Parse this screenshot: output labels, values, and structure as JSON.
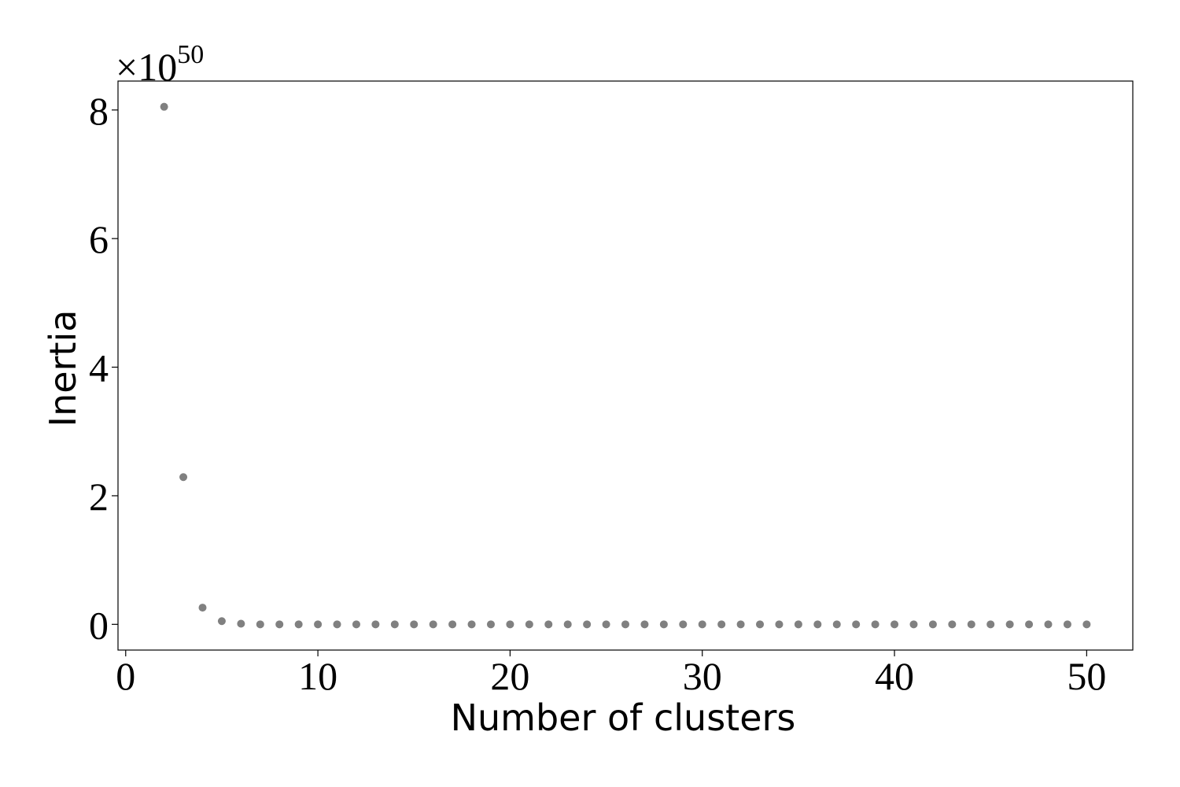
{
  "chart_data": {
    "type": "scatter",
    "xlabel": "Number of clusters",
    "ylabel": "Inertia",
    "y_offset_base": "×10",
    "y_offset_exponent": "50",
    "color": "#808080",
    "x": [
      2,
      3,
      4,
      5,
      6,
      7,
      8,
      9,
      10,
      11,
      12,
      13,
      14,
      15,
      16,
      17,
      18,
      19,
      20,
      21,
      22,
      23,
      24,
      25,
      26,
      27,
      28,
      29,
      30,
      31,
      32,
      33,
      34,
      35,
      36,
      37,
      38,
      39,
      40,
      41,
      42,
      43,
      44,
      45,
      46,
      47,
      48,
      49,
      50
    ],
    "values": [
      8.05,
      2.29,
      0.26,
      0.05,
      0.01,
      0,
      0,
      0,
      0,
      0,
      0,
      0,
      0,
      0,
      0,
      0,
      0,
      0,
      0,
      0,
      0,
      0,
      0,
      0,
      0,
      0,
      0,
      0,
      0,
      0,
      0,
      0,
      0,
      0,
      0,
      0,
      0,
      0,
      0,
      0,
      0,
      0,
      0,
      0,
      0,
      0,
      0,
      0,
      0
    ],
    "xlim": [
      -0.4,
      52.4
    ],
    "ylim": [
      -0.4,
      8.45
    ],
    "xticks": [
      0,
      10,
      20,
      30,
      40,
      50
    ],
    "yticks": [
      0,
      2,
      4,
      6,
      8
    ]
  }
}
